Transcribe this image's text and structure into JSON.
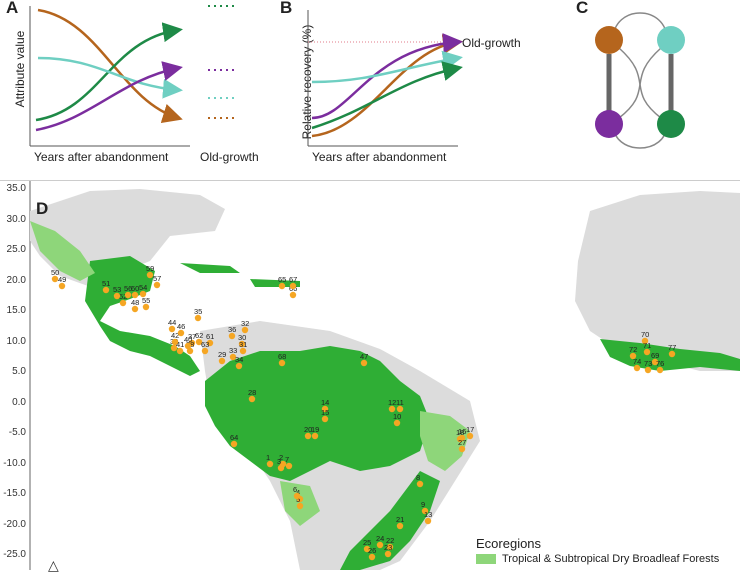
{
  "panelA": {
    "label": "A",
    "ylabel": "Attribute value",
    "xlabel": "Years after abandonment",
    "oldgrowth_label": "Old-growth"
  },
  "panelB": {
    "label": "B",
    "ylabel": "Relative recovery (%)",
    "xlabel": "Years after abandonment",
    "oldgrowth_label": "Old-growth"
  },
  "panelC": {
    "label": "C"
  },
  "panelD": {
    "label": "D",
    "yticks": [
      "35.0",
      "30.0",
      "25.0",
      "20.0",
      "15.0",
      "10.0",
      "5.0",
      "0.0",
      "-5.0",
      "-10.0",
      "-15.0",
      "-20.0",
      "-25.0"
    ],
    "legend_title": "Ecoregions",
    "legend_items": [
      {
        "label": "Tropical & Subtropical Dry Broadleaf Forests",
        "color": "#8ed67a"
      }
    ],
    "sites": [
      {
        "n": "1"
      },
      {
        "n": "2"
      },
      {
        "n": "3"
      },
      {
        "n": "4"
      },
      {
        "n": "5"
      },
      {
        "n": "6"
      },
      {
        "n": "7"
      },
      {
        "n": "8"
      },
      {
        "n": "9"
      },
      {
        "n": "10"
      },
      {
        "n": "11"
      },
      {
        "n": "12"
      },
      {
        "n": "13"
      },
      {
        "n": "14"
      },
      {
        "n": "15"
      },
      {
        "n": "16"
      },
      {
        "n": "17"
      },
      {
        "n": "18"
      },
      {
        "n": "19"
      },
      {
        "n": "20"
      },
      {
        "n": "21"
      },
      {
        "n": "22"
      },
      {
        "n": "23"
      },
      {
        "n": "24"
      },
      {
        "n": "25"
      },
      {
        "n": "26"
      },
      {
        "n": "27"
      },
      {
        "n": "28"
      },
      {
        "n": "29"
      },
      {
        "n": "30"
      },
      {
        "n": "31"
      },
      {
        "n": "32"
      },
      {
        "n": "33"
      },
      {
        "n": "34"
      },
      {
        "n": "35"
      },
      {
        "n": "36"
      },
      {
        "n": "37"
      },
      {
        "n": "38"
      },
      {
        "n": "39"
      },
      {
        "n": "40"
      },
      {
        "n": "41"
      },
      {
        "n": "42"
      },
      {
        "n": "44"
      },
      {
        "n": "46"
      },
      {
        "n": "47"
      },
      {
        "n": "48"
      },
      {
        "n": "49"
      },
      {
        "n": "50"
      },
      {
        "n": "51"
      },
      {
        "n": "52"
      },
      {
        "n": "53"
      },
      {
        "n": "54"
      },
      {
        "n": "55"
      },
      {
        "n": "56"
      },
      {
        "n": "57"
      },
      {
        "n": "59"
      },
      {
        "n": "60"
      },
      {
        "n": "61"
      },
      {
        "n": "62"
      },
      {
        "n": "63"
      },
      {
        "n": "64"
      },
      {
        "n": "65"
      },
      {
        "n": "66"
      },
      {
        "n": "67"
      },
      {
        "n": "68"
      },
      {
        "n": "69"
      },
      {
        "n": "70"
      },
      {
        "n": "71"
      },
      {
        "n": "72"
      },
      {
        "n": "73"
      },
      {
        "n": "74"
      },
      {
        "n": "76"
      },
      {
        "n": "77"
      }
    ]
  },
  "colors": {
    "brown": "#b5651d",
    "darkgreen": "#1e8a47",
    "purple": "#7b2d9e",
    "teal": "#6fcfc2",
    "moist_forest": "#2fae35",
    "dry_forest": "#8ed67a",
    "land": "#dcdcdc",
    "site": "#f5a623"
  }
}
